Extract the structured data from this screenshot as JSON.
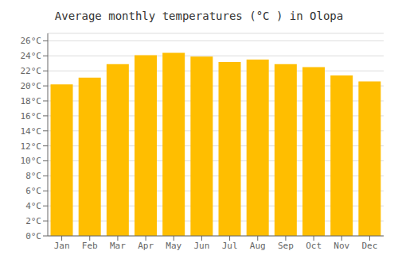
{
  "chart_data": {
    "type": "bar",
    "title": "Average monthly temperatures (°C ) in Olopa",
    "categories": [
      "Jan",
      "Feb",
      "Mar",
      "Apr",
      "May",
      "Jun",
      "Jul",
      "Aug",
      "Sep",
      "Oct",
      "Nov",
      "Dec"
    ],
    "values": [
      20.2,
      21.1,
      22.9,
      24.1,
      24.4,
      23.9,
      23.2,
      23.5,
      22.9,
      22.5,
      21.4,
      20.6
    ],
    "color": "#FFBE00",
    "ylim": [
      0,
      27
    ],
    "yticks": [
      {
        "value": 0,
        "label": "0°C"
      },
      {
        "value": 2,
        "label": "2°C"
      },
      {
        "value": 4,
        "label": "4°C"
      },
      {
        "value": 6,
        "label": "6°C"
      },
      {
        "value": 8,
        "label": "8°C"
      },
      {
        "value": 10,
        "label": "10°C"
      },
      {
        "value": 12,
        "label": "12°C"
      },
      {
        "value": 14,
        "label": "14°C"
      },
      {
        "value": 16,
        "label": "16°C"
      },
      {
        "value": 18,
        "label": "18°C"
      },
      {
        "value": 20,
        "label": "20°C"
      },
      {
        "value": 22,
        "label": "22°C"
      },
      {
        "value": 24,
        "label": "24°C"
      },
      {
        "value": 26,
        "label": "26°C"
      }
    ],
    "grid": true
  }
}
